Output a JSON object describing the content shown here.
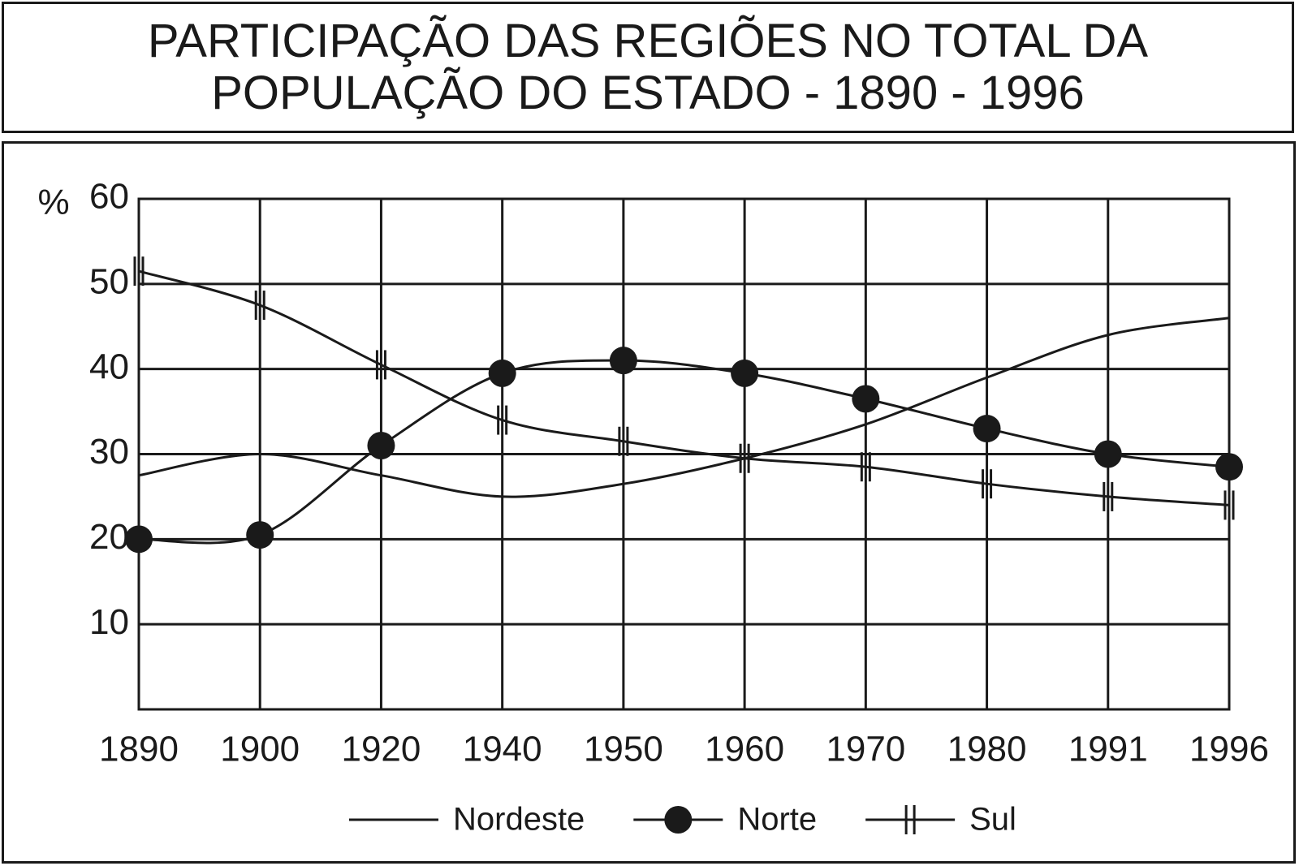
{
  "chart_data": {
    "type": "line",
    "title": "PARTICIPAÇÃO DAS REGIÕES NO TOTAL DA POPULAÇÃO DO ESTADO - 1890 - 1996",
    "y_label": "%",
    "categories": [
      "1890",
      "1900",
      "1920",
      "1940",
      "1950",
      "1960",
      "1970",
      "1980",
      "1991",
      "1996"
    ],
    "series": [
      {
        "name": "Nordeste",
        "color": "#1a1a1a",
        "marker": "none",
        "values": [
          27.5,
          30,
          27.5,
          25,
          26.5,
          29.5,
          33.5,
          39,
          44,
          46
        ]
      },
      {
        "name": "Norte",
        "color": "#1a1a1a",
        "marker": "circle",
        "values": [
          20,
          20.5,
          31,
          39.5,
          41,
          39.5,
          36.5,
          33,
          30,
          28.5
        ]
      },
      {
        "name": "Sul",
        "color": "#1a1a1a",
        "marker": "double-tick",
        "values": [
          51.5,
          47.5,
          40.5,
          34,
          31.5,
          29.5,
          28.5,
          26.5,
          25,
          24
        ]
      }
    ],
    "ylim": [
      0,
      60
    ],
    "yticks": [
      10,
      20,
      30,
      40,
      50,
      60
    ],
    "grid": true,
    "legend": "bottom"
  }
}
